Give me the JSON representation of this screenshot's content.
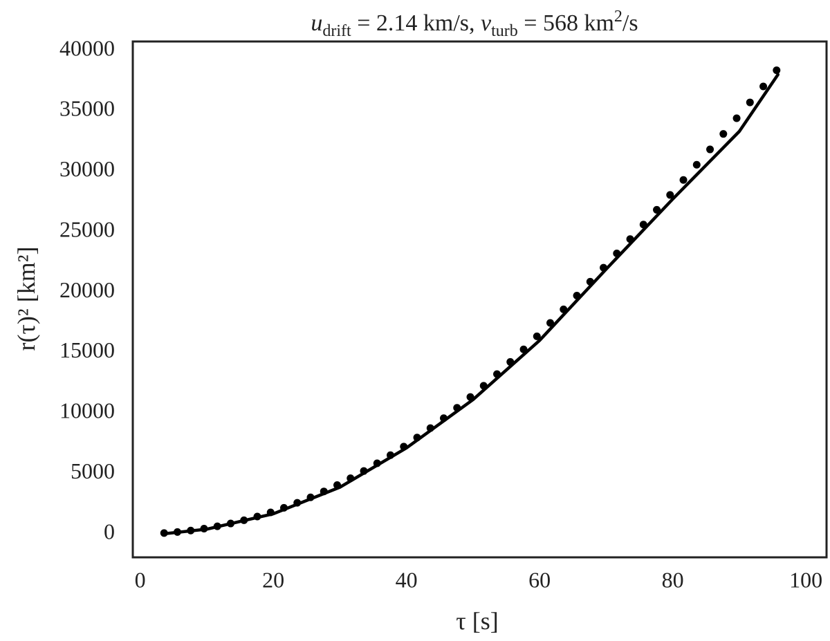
{
  "chart_data": {
    "type": "scatter",
    "title": [
      "u",
      "drift",
      " = 2.14 km/s, ",
      "ν",
      "turb",
      " = 568 km",
      "2",
      "/s"
    ],
    "xlabel": "τ [s]",
    "ylabel": "r(τ)² [km²]",
    "xlim": [
      -1.1,
      103.1
    ],
    "ylim": [
      -1950,
      40740
    ],
    "xticks": [
      0,
      20,
      40,
      60,
      80,
      100
    ],
    "yticks": [
      0,
      5000,
      10000,
      15000,
      20000,
      25000,
      30000,
      35000,
      40000
    ],
    "grid": false,
    "series": [
      {
        "type": "scatter",
        "color": "#000000",
        "x": [
          3.6,
          5.6,
          7.6,
          9.6,
          11.6,
          13.6,
          15.6,
          17.6,
          19.6,
          21.6,
          23.6,
          25.6,
          27.6,
          29.6,
          31.6,
          33.6,
          35.6,
          37.6,
          39.6,
          41.6,
          43.6,
          45.6,
          47.6,
          49.6,
          51.6,
          53.6,
          55.6,
          57.6,
          59.6,
          61.6,
          63.6,
          65.6,
          67.6,
          69.6,
          71.6,
          73.6,
          75.6,
          77.6,
          79.6,
          81.6,
          83.6,
          85.6,
          87.6,
          89.6,
          91.6,
          93.6,
          95.6
        ],
        "values": [
          60,
          144,
          266,
          424,
          619,
          851,
          1119,
          1425,
          1767,
          2146,
          2562,
          3015,
          3504,
          4030,
          4593,
          5193,
          5830,
          6503,
          7213,
          7961,
          8744,
          9565,
          10423,
          11317,
          12248,
          13216,
          14220,
          15262,
          16340,
          17450,
          18570,
          19710,
          20860,
          22020,
          23200,
          24390,
          25590,
          26810,
          28040,
          29280,
          30540,
          31810,
          33090,
          34390,
          35700,
          37020,
          38360
        ]
      },
      {
        "type": "line",
        "color": "#000000",
        "x": [
          3.6,
          10,
          20,
          30,
          40,
          50,
          60,
          70,
          80,
          90,
          95.8
        ],
        "values": [
          0,
          380,
          1650,
          3850,
          7100,
          11100,
          16000,
          21900,
          27700,
          33300,
          38000
        ]
      }
    ]
  }
}
